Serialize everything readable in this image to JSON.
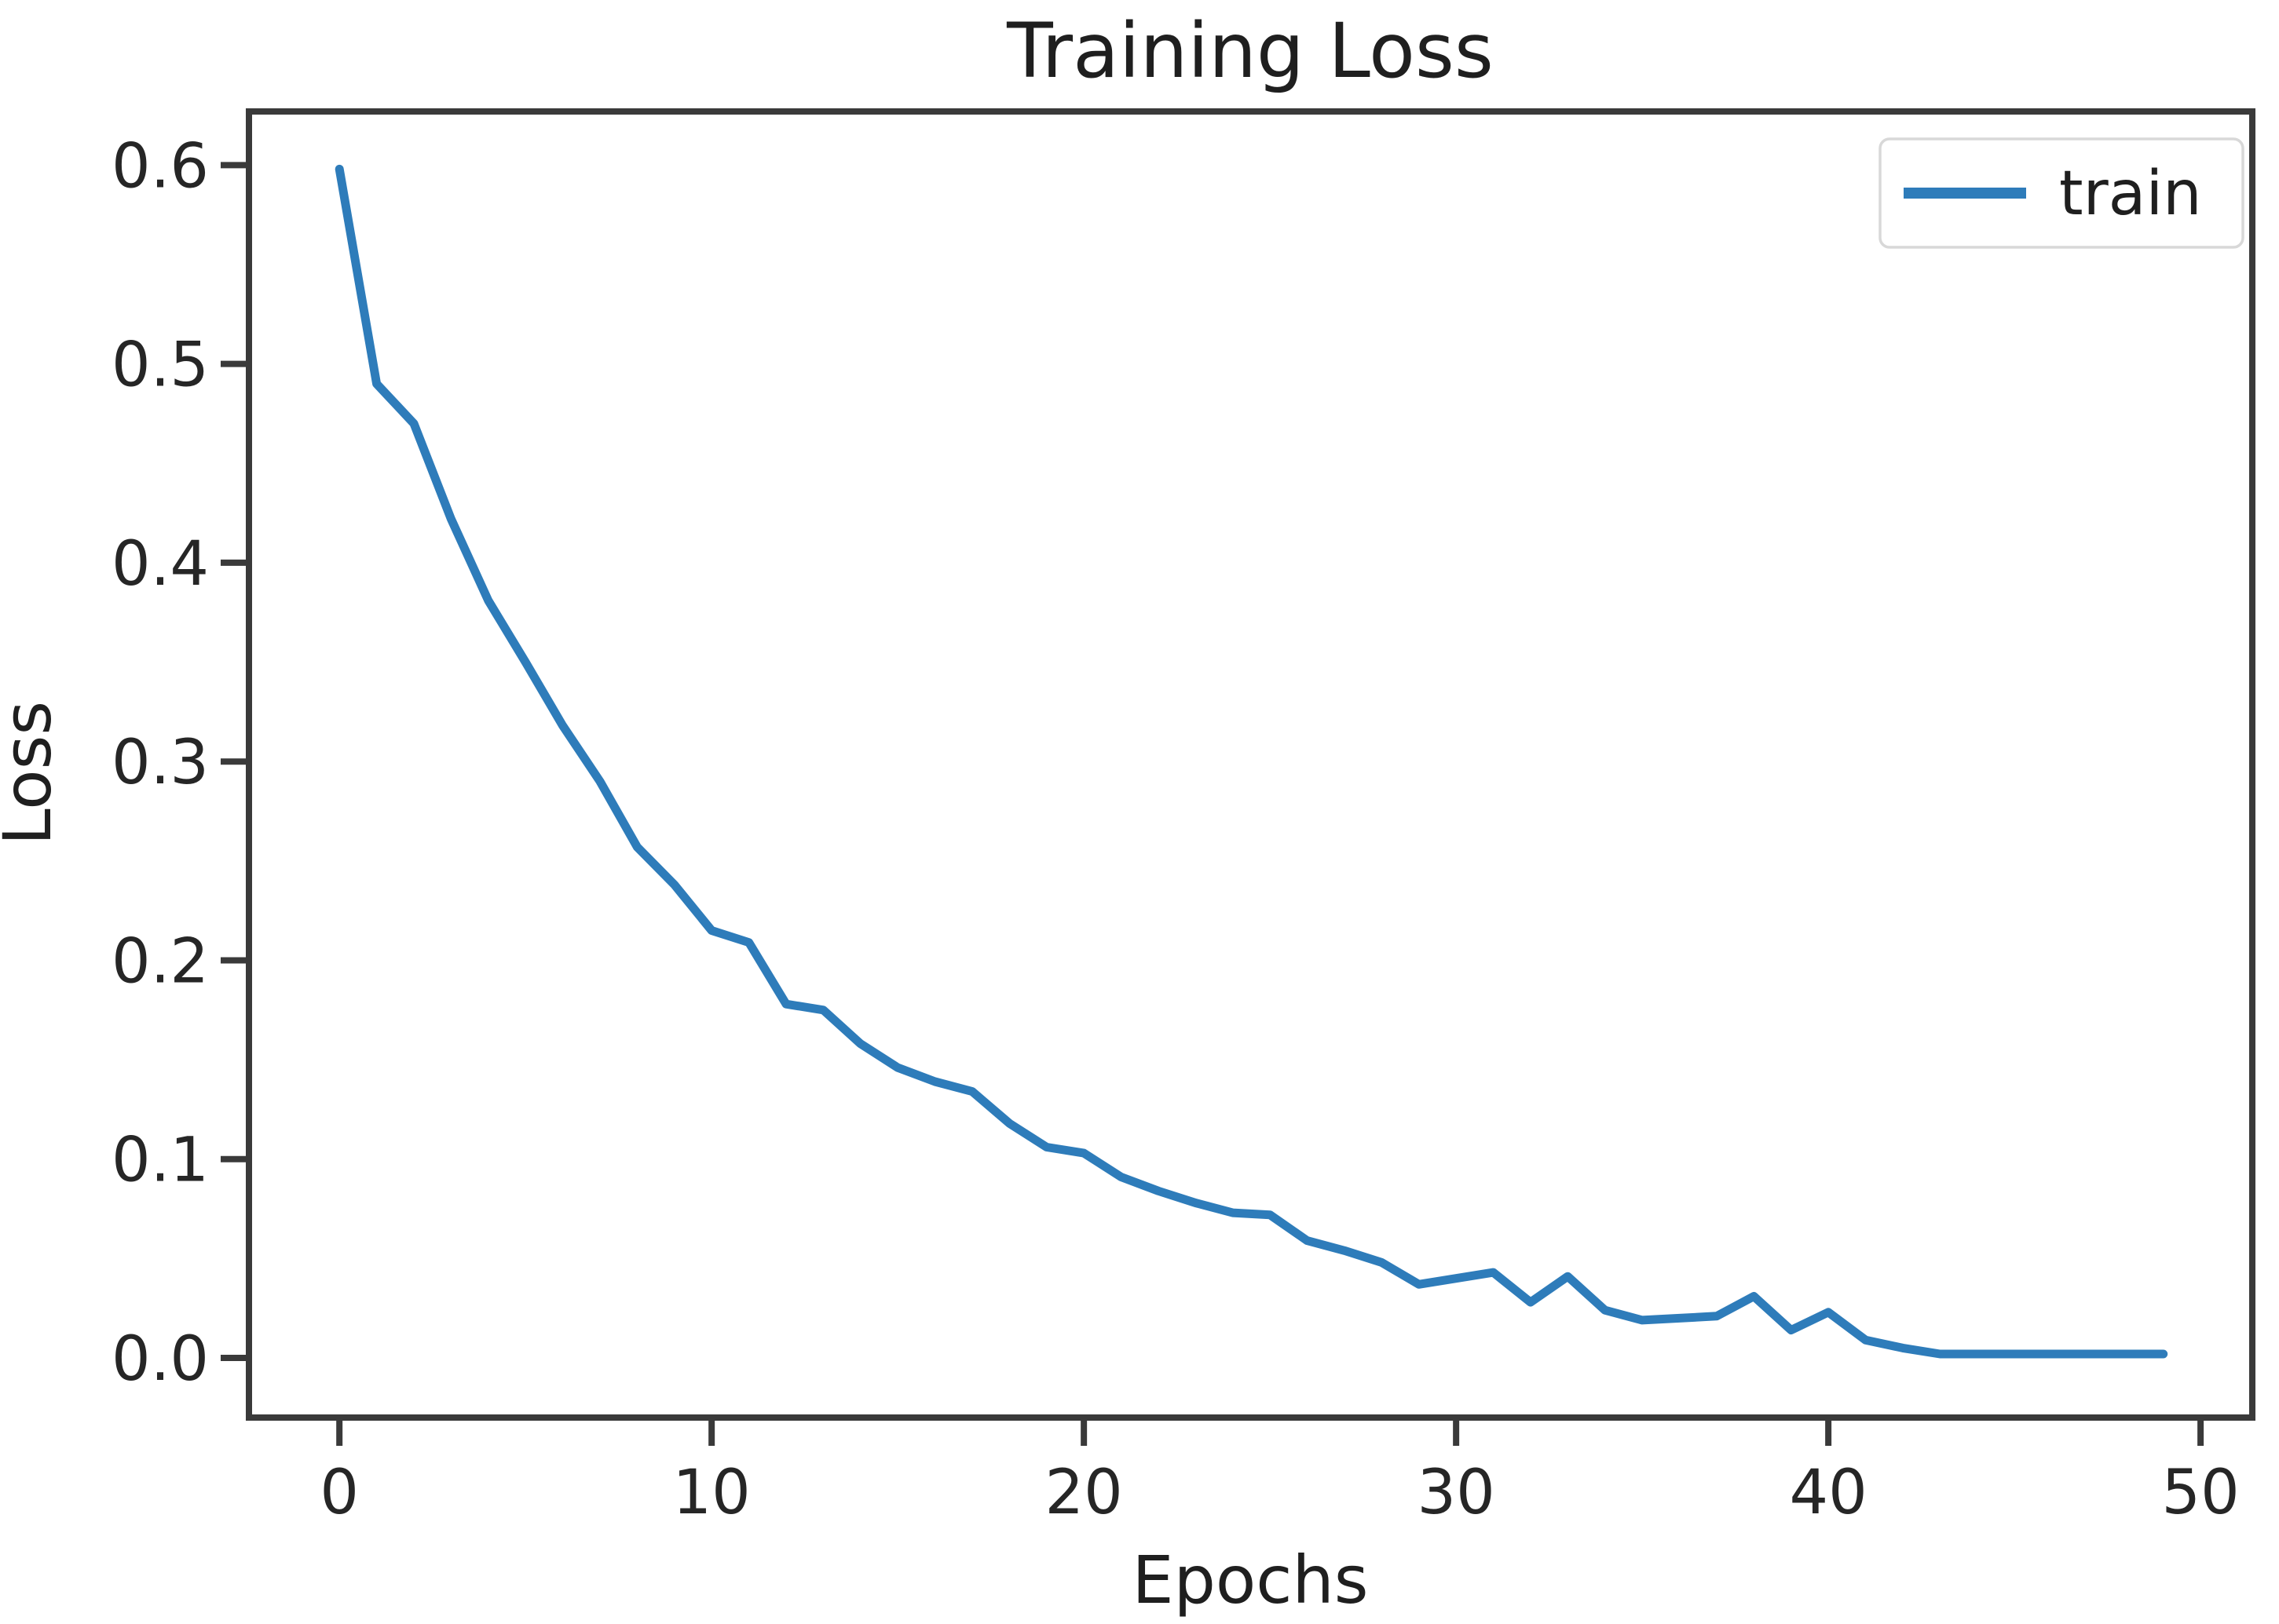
{
  "figure": {
    "title": "Training Loss",
    "x_axis_label": "Epochs",
    "y_axis_label": "Loss",
    "legend": {
      "position": "upper right",
      "entries": [
        {
          "label": "train"
        }
      ]
    }
  },
  "chart_data": {
    "type": "line",
    "title": "Training Loss",
    "xlabel": "Epochs",
    "ylabel": "Loss",
    "grid": false,
    "legend_position": "upper right",
    "x_ticks": [
      0,
      10,
      20,
      30,
      40,
      50
    ],
    "y_ticks": [
      0.0,
      0.1,
      0.2,
      0.3,
      0.4,
      0.5,
      0.6
    ],
    "xlim": [
      -2.43,
      51.39
    ],
    "ylim": [
      -0.03,
      0.627
    ],
    "x": [
      0,
      1,
      2,
      3,
      4,
      5,
      6,
      7,
      8,
      9,
      10,
      11,
      12,
      13,
      14,
      15,
      16,
      17,
      18,
      19,
      20,
      21,
      22,
      23,
      24,
      25,
      26,
      27,
      28,
      29,
      30,
      31,
      32,
      33,
      34,
      35,
      36,
      37,
      38,
      39,
      40,
      41,
      42,
      43,
      44,
      45,
      46,
      47,
      48,
      49
    ],
    "series": [
      {
        "name": "train",
        "color": "#2e7cba",
        "values": [
          0.598,
          0.49,
          0.47,
          0.422,
          0.381,
          0.35,
          0.318,
          0.29,
          0.257,
          0.238,
          0.215,
          0.209,
          0.178,
          0.175,
          0.158,
          0.146,
          0.139,
          0.134,
          0.118,
          0.106,
          0.103,
          0.091,
          0.084,
          0.078,
          0.073,
          0.072,
          0.059,
          0.054,
          0.048,
          0.037,
          0.04,
          0.043,
          0.028,
          0.041,
          0.024,
          0.019,
          0.02,
          0.021,
          0.031,
          0.014,
          0.023,
          0.009,
          0.005,
          0.002,
          0.002,
          0.002,
          0.002,
          0.002,
          0.002,
          0.002
        ]
      }
    ]
  },
  "colors": {
    "line": "#2e7cba",
    "spine": "#3a3a3a",
    "legend_border": "#d8d8d8",
    "background": "#ffffff"
  }
}
